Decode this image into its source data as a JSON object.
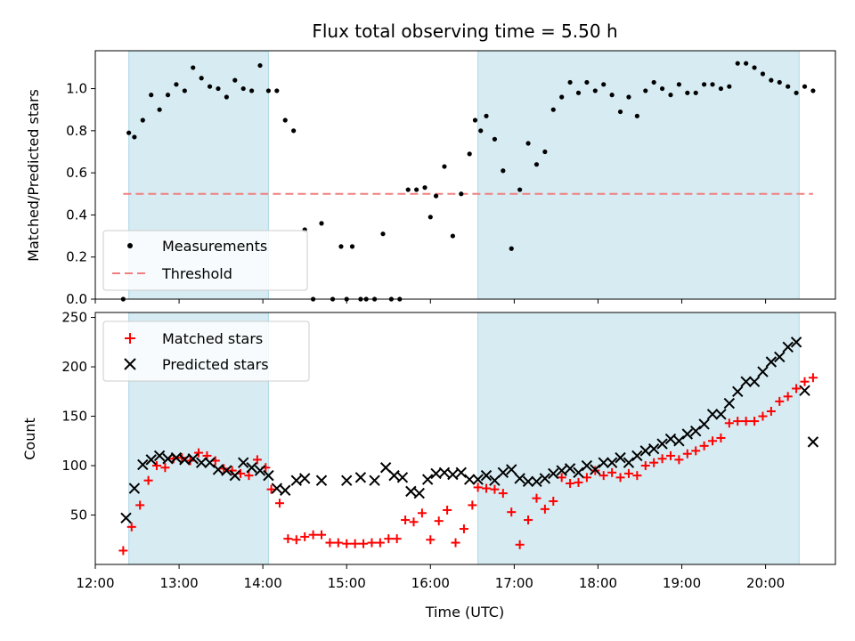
{
  "chart_data": [
    {
      "type": "scatter",
      "title": "Flux total observing time = 5.50 h",
      "ylabel": "Matched/Predicted stars",
      "xlim": [
        "12:00",
        "20:50"
      ],
      "ylim": [
        0,
        1.18
      ],
      "yticks": [
        "0.0",
        "0.2",
        "0.4",
        "0.6",
        "0.8",
        "1.0"
      ],
      "shaded_regions": [
        [
          "12:24",
          "14:04"
        ],
        [
          "16:34",
          "20:24"
        ]
      ],
      "threshold": 0.5,
      "legend": {
        "placement": "lower-left",
        "entries": [
          "Measurements",
          "Threshold"
        ]
      },
      "series": [
        {
          "name": "Measurements",
          "x": [
            "12:20",
            "12:24",
            "12:28",
            "12:34",
            "12:40",
            "12:46",
            "12:52",
            "12:58",
            "13:04",
            "13:10",
            "13:16",
            "13:22",
            "13:28",
            "13:34",
            "13:40",
            "13:46",
            "13:52",
            "13:58",
            "14:04",
            "14:10",
            "14:16",
            "14:22",
            "14:30",
            "14:36",
            "14:42",
            "14:50",
            "14:56",
            "15:00",
            "15:04",
            "15:10",
            "15:14",
            "15:20",
            "15:26",
            "15:32",
            "15:38",
            "15:44",
            "15:50",
            "15:56",
            "16:00",
            "16:04",
            "16:10",
            "16:16",
            "16:22",
            "16:28",
            "16:32",
            "16:36",
            "16:40",
            "16:46",
            "16:52",
            "16:58",
            "17:04",
            "17:10",
            "17:16",
            "17:22",
            "17:28",
            "17:34",
            "17:40",
            "17:46",
            "17:52",
            "17:58",
            "18:04",
            "18:10",
            "18:16",
            "18:22",
            "18:28",
            "18:34",
            "18:40",
            "18:46",
            "18:52",
            "18:58",
            "19:04",
            "19:10",
            "19:16",
            "19:22",
            "19:28",
            "19:34",
            "19:40",
            "19:46",
            "19:52",
            "19:58",
            "20:04",
            "20:10",
            "20:16",
            "20:22",
            "20:28",
            "20:34"
          ],
          "y": [
            0.0,
            0.79,
            0.77,
            0.85,
            0.97,
            0.9,
            0.97,
            1.02,
            0.99,
            1.1,
            1.05,
            1.01,
            1.0,
            0.96,
            1.04,
            1.0,
            0.99,
            1.11,
            0.99,
            0.99,
            0.85,
            0.8,
            0.33,
            0.0,
            0.36,
            0.0,
            0.25,
            0.0,
            0.25,
            0.0,
            0.0,
            0.0,
            0.31,
            0.0,
            0.0,
            0.52,
            0.52,
            0.53,
            0.39,
            0.49,
            0.63,
            0.3,
            0.5,
            0.69,
            0.85,
            0.8,
            0.87,
            0.76,
            0.61,
            0.24,
            0.52,
            0.74,
            0.64,
            0.7,
            0.9,
            0.96,
            1.03,
            0.98,
            1.03,
            0.99,
            1.02,
            0.97,
            0.89,
            0.96,
            0.87,
            0.99,
            1.03,
            1.0,
            0.97,
            1.02,
            0.98,
            0.98,
            1.02,
            1.02,
            1.0,
            1.01,
            1.12,
            1.12,
            1.1,
            1.07,
            1.04,
            1.03,
            1.01,
            0.98,
            1.01,
            0.99
          ]
        }
      ]
    },
    {
      "type": "scatter",
      "ylabel": "Count",
      "xlabel": "Time (UTC)",
      "xlim": [
        "12:00",
        "20:50"
      ],
      "ylim": [
        0,
        255
      ],
      "xticks": [
        "12:00",
        "13:00",
        "14:00",
        "15:00",
        "16:00",
        "17:00",
        "18:00",
        "19:00",
        "20:00"
      ],
      "yticks": [
        "50",
        "100",
        "150",
        "200",
        "250"
      ],
      "shaded_regions": [
        [
          "12:24",
          "14:04"
        ],
        [
          "16:34",
          "20:24"
        ]
      ],
      "legend": {
        "placement": "upper-left",
        "entries": [
          "Matched stars",
          "Predicted stars"
        ]
      },
      "series": [
        {
          "name": "Matched stars",
          "x": [
            "12:20",
            "12:26",
            "12:32",
            "12:38",
            "12:44",
            "12:50",
            "12:56",
            "13:02",
            "13:08",
            "13:14",
            "13:20",
            "13:26",
            "13:32",
            "13:38",
            "13:44",
            "13:50",
            "13:56",
            "14:02",
            "14:06",
            "14:12",
            "14:18",
            "14:24",
            "14:30",
            "14:36",
            "14:42",
            "14:48",
            "14:54",
            "15:00",
            "15:06",
            "15:12",
            "15:18",
            "15:24",
            "15:30",
            "15:36",
            "15:42",
            "15:48",
            "15:54",
            "16:00",
            "16:06",
            "16:12",
            "16:18",
            "16:24",
            "16:30",
            "16:34",
            "16:40",
            "16:46",
            "16:52",
            "16:58",
            "17:04",
            "17:10",
            "17:16",
            "17:22",
            "17:28",
            "17:34",
            "17:40",
            "17:46",
            "17:52",
            "17:58",
            "18:04",
            "18:10",
            "18:16",
            "18:22",
            "18:28",
            "18:34",
            "18:40",
            "18:46",
            "18:52",
            "18:58",
            "19:04",
            "19:10",
            "19:16",
            "19:22",
            "19:28",
            "19:34",
            "19:40",
            "19:46",
            "19:52",
            "19:58",
            "20:04",
            "20:10",
            "20:16",
            "20:22",
            "20:28",
            "20:34"
          ],
          "y": [
            14,
            38,
            60,
            85,
            100,
            98,
            107,
            108,
            105,
            113,
            110,
            105,
            97,
            95,
            92,
            90,
            106,
            98,
            76,
            62,
            26,
            25,
            28,
            30,
            30,
            22,
            22,
            21,
            21,
            21,
            22,
            22,
            26,
            26,
            45,
            43,
            52,
            25,
            44,
            55,
            22,
            36,
            60,
            78,
            77,
            76,
            72,
            53,
            20,
            45,
            67,
            56,
            64,
            88,
            82,
            83,
            88,
            95,
            90,
            93,
            88,
            92,
            90,
            100,
            103,
            107,
            110,
            106,
            112,
            115,
            120,
            125,
            128,
            143,
            145,
            145,
            145,
            150,
            155,
            165,
            170,
            178,
            185,
            189
          ]
        },
        {
          "name": "Predicted stars",
          "x": [
            "12:22",
            "12:28",
            "12:34",
            "12:40",
            "12:46",
            "12:52",
            "12:58",
            "13:04",
            "13:10",
            "13:16",
            "13:22",
            "13:28",
            "13:34",
            "13:40",
            "13:46",
            "13:52",
            "13:58",
            "14:04",
            "14:10",
            "14:16",
            "14:24",
            "14:30",
            "14:42",
            "15:00",
            "15:10",
            "15:20",
            "15:28",
            "15:34",
            "15:40",
            "15:46",
            "15:52",
            "15:58",
            "16:04",
            "16:10",
            "16:16",
            "16:22",
            "16:28",
            "16:34",
            "16:40",
            "16:46",
            "16:52",
            "16:58",
            "17:04",
            "17:10",
            "17:16",
            "17:22",
            "17:28",
            "17:34",
            "17:40",
            "17:46",
            "17:52",
            "17:58",
            "18:04",
            "18:10",
            "18:16",
            "18:22",
            "18:28",
            "18:34",
            "18:40",
            "18:46",
            "18:52",
            "18:58",
            "19:04",
            "19:10",
            "19:16",
            "19:22",
            "19:28",
            "19:34",
            "19:40",
            "19:46",
            "19:52",
            "19:58",
            "20:04",
            "20:10",
            "20:16",
            "20:22",
            "20:28",
            "20:34"
          ],
          "y": [
            47,
            77,
            101,
            106,
            110,
            107,
            108,
            106,
            107,
            103,
            103,
            96,
            95,
            90,
            103,
            98,
            95,
            90,
            77,
            75,
            85,
            87,
            85,
            85,
            88,
            85,
            98,
            90,
            88,
            74,
            72,
            86,
            92,
            93,
            91,
            93,
            86,
            86,
            90,
            85,
            93,
            96,
            87,
            84,
            84,
            87,
            92,
            95,
            97,
            93,
            100,
            96,
            103,
            103,
            108,
            103,
            110,
            115,
            117,
            122,
            127,
            125,
            132,
            135,
            142,
            152,
            152,
            163,
            175,
            185,
            185,
            195,
            205,
            210,
            220,
            225,
            176,
            124
          ]
        }
      ]
    }
  ]
}
